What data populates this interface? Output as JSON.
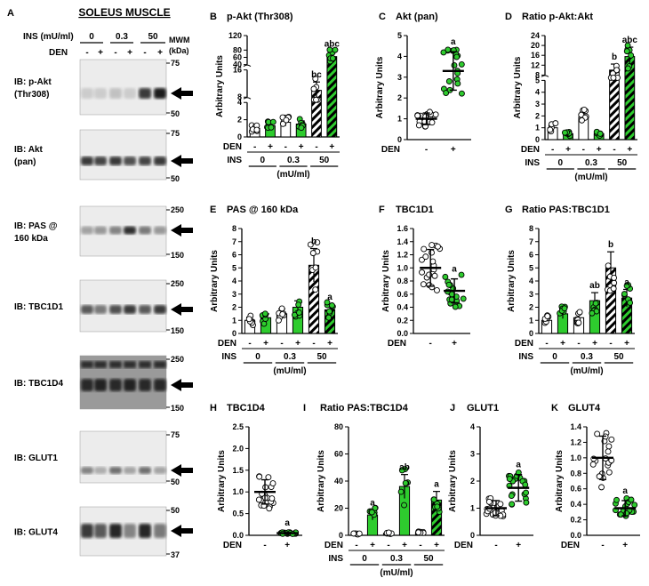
{
  "blot": {
    "panel_letter": "A",
    "title": "SOLEUS MUSCLE",
    "ins_label": "INS (mU/ml)",
    "ins_levels": [
      "0",
      "0.3",
      "50"
    ],
    "den_label": "DEN",
    "den_signs": [
      "-",
      "+",
      "-",
      "+",
      "-",
      "+"
    ],
    "mwm_label": "MWM",
    "kda_label": "(kDa)",
    "blots": [
      {
        "label_lines": [
          "IB: p-Akt",
          "(Thr308)"
        ],
        "markers": [
          "75",
          "50"
        ]
      },
      {
        "label_lines": [
          "IB: Akt",
          "(pan)"
        ],
        "markers": [
          "75",
          "50"
        ]
      },
      {
        "label_lines": [
          "IB: PAS @",
          "160 kDa"
        ],
        "markers": [
          "250",
          "150"
        ]
      },
      {
        "label_lines": [
          "IB: TBC1D1"
        ],
        "markers": [
          "250",
          "150"
        ]
      },
      {
        "label_lines": [
          "IB: TBC1D4"
        ],
        "markers": [
          "250",
          "150"
        ]
      },
      {
        "label_lines": [
          "IB: GLUT1"
        ],
        "markers": [
          "75",
          "50"
        ]
      },
      {
        "label_lines": [
          "IB: GLUT4"
        ],
        "markers": [
          "50",
          "37"
        ]
      }
    ]
  },
  "chart_data": [
    {
      "id": "B",
      "type": "bar",
      "title": "p-Akt (Thr308)",
      "ylabel": "Arbitrary Units",
      "categories": [
        "0 -",
        "0 +",
        "0.3 -",
        "0.3 +",
        "50 -",
        "50 +"
      ],
      "values": [
        1.0,
        1.3,
        1.7,
        1.5,
        10.0,
        62.0
      ],
      "sig": [
        "",
        "",
        "",
        "",
        "bc",
        "abc"
      ],
      "y_segments": [
        {
          "range": [
            0,
            4
          ],
          "ticks": [
            "0",
            "2",
            "4"
          ]
        },
        {
          "range": [
            8,
            16
          ],
          "ticks": [
            "8",
            "16"
          ]
        },
        {
          "range": [
            40,
            120
          ],
          "ticks": [
            "40",
            "60",
            "80",
            "120"
          ]
        }
      ],
      "x_groups": {
        "den_label": "DEN",
        "ins_label": "INS",
        "levels": [
          "0",
          "0.3",
          "50"
        ],
        "unit": "(mU/ml)",
        "den_signs": [
          "-",
          "+",
          "-",
          "+",
          "-",
          "+"
        ]
      }
    },
    {
      "id": "C",
      "type": "scatter",
      "title": "Akt (pan)",
      "ylabel": "Arbitrary Units",
      "categories": [
        "-",
        "+"
      ],
      "values": [
        1.0,
        3.3
      ],
      "sig": [
        "",
        "a"
      ],
      "ylim": [
        0,
        5
      ],
      "yticks": [
        "0",
        "1",
        "2",
        "3",
        "4",
        "5"
      ],
      "den_label": "DEN"
    },
    {
      "id": "D",
      "type": "bar",
      "title": "Ratio p-Akt:Akt",
      "ylabel": "Arbitrary Units",
      "categories": [
        "0 -",
        "0 +",
        "0.3 -",
        "0.3 +",
        "50 -",
        "50 +"
      ],
      "values": [
        1.0,
        0.5,
        1.9,
        0.5,
        10.0,
        15.5
      ],
      "sig": [
        "",
        "",
        "",
        "",
        "b",
        "abc"
      ],
      "y_segments": [
        {
          "range": [
            0,
            5
          ],
          "ticks": [
            "0",
            "1",
            "2",
            "3",
            "4",
            "5"
          ]
        },
        {
          "range": [
            8,
            24
          ],
          "ticks": [
            "8",
            "12",
            "16",
            "20",
            "24"
          ]
        }
      ],
      "x_groups": {
        "den_label": "DEN",
        "ins_label": "INS",
        "levels": [
          "0",
          "0.3",
          "50"
        ],
        "unit": "(mU/ml)",
        "den_signs": [
          "-",
          "+",
          "-",
          "+",
          "-",
          "+"
        ]
      }
    },
    {
      "id": "E",
      "type": "bar",
      "title": "PAS @ 160 kDa",
      "ylabel": "Arbitrary Units",
      "categories": [
        "0 -",
        "0 +",
        "0.3 -",
        "0.3 +",
        "50 -",
        "50 +"
      ],
      "values": [
        1.0,
        1.2,
        1.5,
        2.0,
        5.2,
        1.8
      ],
      "sig": [
        "",
        "",
        "",
        "",
        "b",
        "a"
      ],
      "ylim": [
        0,
        8
      ],
      "yticks": [
        "0",
        "1",
        "2",
        "3",
        "4",
        "5",
        "6",
        "7",
        "8"
      ],
      "x_groups": {
        "den_label": "DEN",
        "ins_label": "INS",
        "levels": [
          "0",
          "0.3",
          "50"
        ],
        "unit": "(mU/ml)",
        "den_signs": [
          "-",
          "+",
          "-",
          "+",
          "-",
          "+"
        ]
      }
    },
    {
      "id": "F",
      "type": "scatter",
      "title": "TBC1D1",
      "ylabel": "Arbitrary Units",
      "categories": [
        "-",
        "+"
      ],
      "values": [
        1.0,
        0.65
      ],
      "sig": [
        "",
        "a"
      ],
      "ylim": [
        0,
        1.6
      ],
      "yticks": [
        "0.0",
        "0.2",
        "0.4",
        "0.6",
        "0.8",
        "1.0",
        "1.2",
        "1.4",
        "1.6"
      ],
      "den_label": "DEN"
    },
    {
      "id": "G",
      "type": "bar",
      "title": "Ratio PAS:TBC1D1",
      "ylabel": "Arbitrary Units",
      "categories": [
        "0 -",
        "0 +",
        "0.3 -",
        "0.3 +",
        "50 -",
        "50 +"
      ],
      "values": [
        1.0,
        1.5,
        1.2,
        2.5,
        5.0,
        2.7
      ],
      "sig": [
        "",
        "",
        "",
        "ab",
        "b",
        "a"
      ],
      "ylim": [
        0,
        8
      ],
      "yticks": [
        "0",
        "1",
        "2",
        "3",
        "4",
        "5",
        "6",
        "7",
        "8"
      ],
      "x_groups": {
        "den_label": "DEN",
        "ins_label": "INS",
        "levels": [
          "0",
          "0.3",
          "50"
        ],
        "unit": "(mU/ml)",
        "den_signs": [
          "-",
          "+",
          "-",
          "+",
          "-",
          "+"
        ]
      }
    },
    {
      "id": "H",
      "type": "scatter",
      "title": "TBC1D4",
      "ylabel": "Arbitrary Units",
      "categories": [
        "-",
        "+"
      ],
      "values": [
        1.0,
        0.05
      ],
      "sig": [
        "",
        "a"
      ],
      "ylim": [
        0,
        2.5
      ],
      "yticks": [
        "0.0",
        "0.5",
        "1.0",
        "1.5",
        "2.0",
        "2.5"
      ],
      "den_label": "DEN"
    },
    {
      "id": "I",
      "type": "bar",
      "title": "Ratio PAS:TBC1D4",
      "ylabel": "Arbitrary Units",
      "categories": [
        "0 -",
        "0 +",
        "0.3 -",
        "0.3 +",
        "50 -",
        "50 +"
      ],
      "values": [
        1.0,
        15.0,
        1.5,
        36.0,
        2.0,
        26.0
      ],
      "sig": [
        "",
        "a",
        "",
        "ab",
        "",
        "a"
      ],
      "ylim": [
        0,
        80
      ],
      "yticks": [
        "0",
        "20",
        "40",
        "60",
        "80"
      ],
      "x_groups": {
        "den_label": "DEN",
        "ins_label": "INS",
        "levels": [
          "0",
          "0.3",
          "50"
        ],
        "unit": "(mU/ml)",
        "den_signs": [
          "-",
          "+",
          "-",
          "+",
          "-",
          "+"
        ]
      }
    },
    {
      "id": "J",
      "type": "scatter",
      "title": "GLUT1",
      "ylabel": "Arbitrary Units",
      "categories": [
        "-",
        "+"
      ],
      "values": [
        1.0,
        1.75
      ],
      "sig": [
        "",
        "a"
      ],
      "ylim": [
        0,
        4
      ],
      "yticks": [
        "0",
        "1",
        "2",
        "3",
        "4"
      ],
      "den_label": "DEN"
    },
    {
      "id": "K",
      "type": "scatter",
      "title": "GLUT4",
      "ylabel": "Arbitrary Units",
      "categories": [
        "-",
        "+"
      ],
      "values": [
        1.0,
        0.35
      ],
      "sig": [
        "",
        "a"
      ],
      "ylim": [
        0,
        1.4
      ],
      "yticks": [
        "0.0",
        "0.2",
        "0.4",
        "0.6",
        "0.8",
        "1.0",
        "1.2",
        "1.4"
      ],
      "den_label": "DEN"
    }
  ],
  "colors": {
    "green": "#2ecc2e",
    "dark_green": "#1f8f1f",
    "gray_band": "#1a1a1a",
    "black": "#000000",
    "white": "#ffffff"
  }
}
